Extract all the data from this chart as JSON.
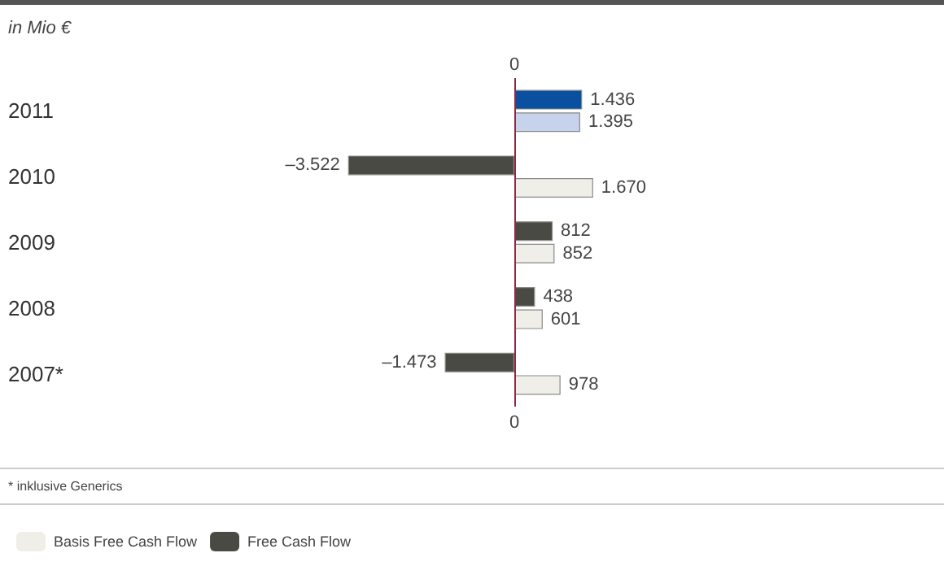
{
  "chart_data": {
    "type": "bar",
    "orientation": "horizontal",
    "subtitle": "in Mio €",
    "categories": [
      "2011",
      "2010",
      "2009",
      "2008",
      "2007*"
    ],
    "series": [
      {
        "name": "Free Cash Flow",
        "colors": [
          "#0a4fa0",
          "#4a4a45",
          "#4a4a45",
          "#4a4a45",
          "#4a4a45"
        ],
        "values": [
          1436,
          -3522,
          812,
          438,
          -1473
        ],
        "value_labels": [
          "1.436",
          "–3.522",
          "812",
          "438",
          "–1.473"
        ]
      },
      {
        "name": "Basis Free Cash Flow",
        "colors": [
          "#c7d2ec",
          "#efeee8",
          "#efeee8",
          "#efeee8",
          "#efeee8"
        ],
        "values": [
          1395,
          1670,
          852,
          601,
          978
        ],
        "value_labels": [
          "1.395",
          "1.670",
          "852",
          "601",
          "978"
        ]
      }
    ],
    "legend": "bottom left",
    "ref_lines": [
      {
        "axis": "x",
        "value": 0,
        "color": "#8b2a45"
      }
    ],
    "annotations": [
      "0",
      "0",
      "* inklusive Generics"
    ]
  }
}
